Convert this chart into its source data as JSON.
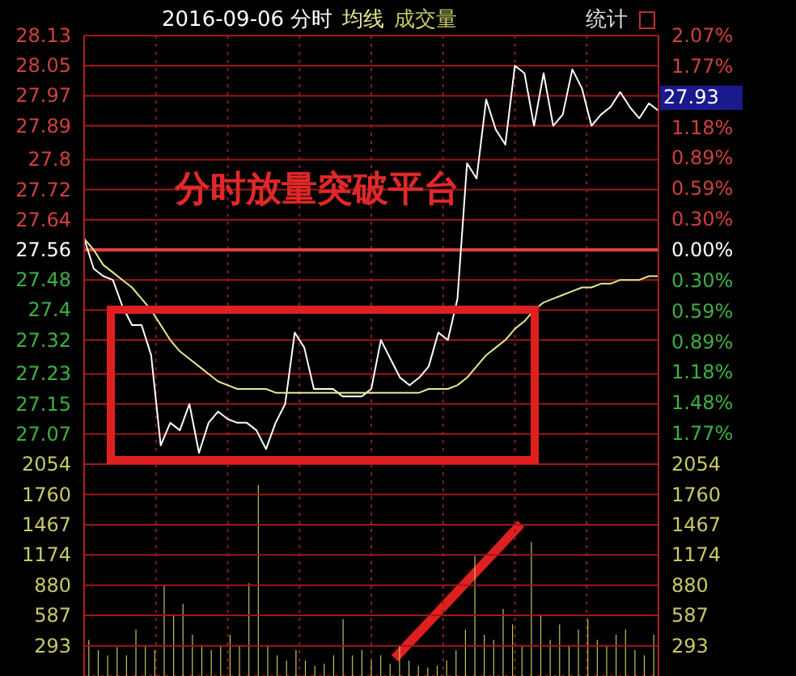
{
  "chart_data": [
    {
      "type": "line",
      "title": "2016-09-06 分时",
      "categories": [
        null,
        null,
        null,
        null,
        null,
        null,
        null,
        null,
        null,
        null,
        null,
        null,
        null,
        null,
        null,
        null,
        null,
        null,
        null,
        null,
        null,
        null,
        null,
        null,
        null,
        null,
        null,
        null,
        null,
        null,
        null,
        null,
        null,
        null,
        null,
        null,
        null,
        null,
        null,
        null,
        null,
        null,
        null,
        null,
        null,
        null,
        null,
        null,
        null,
        null,
        null,
        null,
        null,
        null,
        null,
        null,
        null,
        null,
        null,
        null,
        null
      ],
      "series": [
        {
          "color": "#ffffff",
          "values": [
            27.59,
            27.51,
            27.49,
            27.48,
            27.41,
            27.36,
            27.36,
            27.28,
            27.04,
            27.1,
            27.08,
            27.15,
            27.02,
            27.1,
            27.13,
            27.11,
            27.1,
            27.1,
            27.08,
            27.03,
            27.1,
            27.15,
            27.34,
            27.3,
            27.19,
            27.19,
            27.19,
            27.17,
            27.17,
            27.17,
            27.19,
            27.32,
            27.27,
            27.22,
            27.2,
            27.22,
            27.25,
            27.34,
            27.32,
            27.43,
            27.79,
            27.75,
            27.96,
            27.88,
            27.84,
            28.05,
            28.03,
            27.89,
            28.03,
            27.89,
            27.92,
            28.04,
            27.99,
            27.89,
            27.92,
            27.94,
            27.98,
            27.94,
            27.91,
            27.95,
            27.93
          ]
        },
        {
          "name": "均线",
          "color": "#e8e890",
          "values": [
            27.59,
            27.56,
            27.52,
            27.5,
            27.48,
            27.46,
            27.43,
            27.4,
            27.36,
            27.32,
            27.29,
            27.27,
            27.25,
            27.23,
            27.21,
            27.2,
            27.19,
            27.19,
            27.19,
            27.19,
            27.18,
            27.18,
            27.18,
            27.18,
            27.18,
            27.18,
            27.18,
            27.18,
            27.18,
            27.18,
            27.18,
            27.18,
            27.18,
            27.18,
            27.18,
            27.18,
            27.19,
            27.19,
            27.19,
            27.2,
            27.22,
            27.25,
            27.28,
            27.3,
            27.32,
            27.35,
            27.37,
            27.4,
            27.42,
            27.43,
            27.44,
            27.45,
            27.46,
            27.46,
            27.47,
            27.47,
            27.48,
            27.48,
            27.48,
            27.49,
            27.49
          ]
        }
      ],
      "ylim": [
        26.99,
        28.13
      ],
      "yticks": [
        27.07,
        27.15,
        27.23,
        27.32,
        27.4,
        27.48,
        27.56,
        27.64,
        27.72,
        27.8,
        27.89,
        27.97,
        28.05,
        28.13
      ],
      "y2lim": [
        -2.07,
        2.07
      ],
      "y2ticks": [
        {
          "value": -1.77,
          "label": "1.77%"
        },
        {
          "value": -1.48,
          "label": "1.48%"
        },
        {
          "value": -1.18,
          "label": "1.18%"
        },
        {
          "value": -0.89,
          "label": "0.89%"
        },
        {
          "value": -0.59,
          "label": "0.59%"
        },
        {
          "value": -0.3,
          "label": "0.30%"
        },
        {
          "value": 0,
          "label": "0.00%"
        },
        {
          "value": 0.3,
          "label": "0.30%"
        },
        {
          "value": 0.59,
          "label": "0.59%"
        },
        {
          "value": 0.89,
          "label": "0.89%"
        },
        {
          "value": 1.18,
          "label": "1.18%"
        },
        {
          "value": 1.48,
          "label": null
        },
        {
          "value": 1.77,
          "label": "1.77%"
        },
        {
          "value": 2.07,
          "label": "2.07%"
        }
      ],
      "ref_lines": [
        {
          "axis": "y",
          "value": 27.56,
          "color": "#e04040"
        }
      ],
      "annotations": [
        "分时放量突破平台",
        "27.93",
        "统计"
      ],
      "grid": true,
      "legend": "top",
      "marker": "none",
      "line_style": "solid"
    },
    {
      "type": "bar",
      "categories": [
        null,
        null,
        null,
        null,
        null,
        null,
        null,
        null,
        null,
        null,
        null,
        null,
        null,
        null,
        null,
        null,
        null,
        null,
        null,
        null,
        null,
        null,
        null,
        null,
        null,
        null,
        null,
        null,
        null,
        null,
        null,
        null,
        null,
        null,
        null,
        null,
        null,
        null,
        null,
        null,
        null,
        null,
        null,
        null,
        null,
        null,
        null,
        null,
        null,
        null,
        null,
        null,
        null,
        null,
        null,
        null,
        null,
        null,
        null,
        null,
        null
      ],
      "series": [
        {
          "name": "成交量",
          "color": "#c8c864",
          "values": [
            350,
            250,
            200,
            280,
            200,
            450,
            300,
            250,
            880,
            600,
            700,
            400,
            300,
            250,
            300,
            400,
            300,
            900,
            1850,
            300,
            200,
            150,
            250,
            150,
            100,
            120,
            200,
            550,
            200,
            250,
            150,
            200,
            120,
            300,
            150,
            100,
            80,
            100,
            150,
            250,
            450,
            1160,
            400,
            350,
            650,
            500,
            300,
            1300,
            600,
            350,
            500,
            300,
            450,
            550,
            350,
            300,
            400,
            450,
            250,
            200,
            400
          ]
        }
      ],
      "ylim": [
        0,
        2054
      ],
      "yticks": [
        293,
        587,
        880,
        1174,
        1467,
        1760,
        2054
      ],
      "y2lim": [
        0,
        2054
      ],
      "y2ticks": [
        293,
        587,
        880,
        1174,
        1467,
        1760,
        2054
      ],
      "grid": true,
      "legend": "top"
    }
  ]
}
